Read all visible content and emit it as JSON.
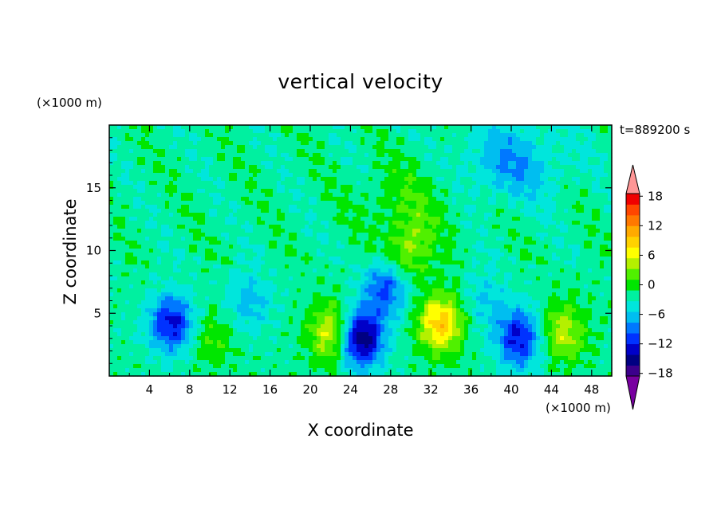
{
  "chart_data": {
    "type": "heatmap",
    "title": "vertical velocity",
    "xlabel": "X coordinate",
    "ylabel": "Z coordinate",
    "x_unit": "(×1000 m)",
    "y_unit": "(×1000 m)",
    "time_label": "t=889200 s",
    "xlim": [
      0,
      50
    ],
    "ylim": [
      0,
      20
    ],
    "x_ticks": [
      4,
      8,
      12,
      16,
      20,
      24,
      28,
      32,
      36,
      40,
      44,
      48
    ],
    "y_ticks": [
      5,
      10,
      15
    ],
    "colorbar": {
      "range": [
        -21,
        21
      ],
      "tick_values": [
        18,
        12,
        6,
        0,
        -6,
        -12,
        -18
      ],
      "tick_labels": [
        "18",
        "12",
        "6",
        "0",
        "−6",
        "−12",
        "−18"
      ],
      "colors": [
        "#7800a0",
        "#3c008c",
        "#000082",
        "#0000c8",
        "#0032ff",
        "#0078ff",
        "#00bef0",
        "#00e6dc",
        "#00f0a0",
        "#00e600",
        "#50f000",
        "#b4f000",
        "#ffff00",
        "#ffd200",
        "#ffaa00",
        "#ff7800",
        "#ff4600",
        "#f00000",
        "#ff9696"
      ],
      "extend": "both"
    },
    "features": [
      {
        "x": 6.2,
        "z": 4.2,
        "value": -12
      },
      {
        "x": 14,
        "z": 6,
        "value": -5
      },
      {
        "x": 10.2,
        "z": 3,
        "value": 4
      },
      {
        "x": 22.2,
        "z": 3.4,
        "value": 10
      },
      {
        "x": 25,
        "z": 3,
        "value": -17
      },
      {
        "x": 27.5,
        "z": 7,
        "value": -9
      },
      {
        "x": 29.8,
        "z": 10,
        "value": 7
      },
      {
        "x": 33,
        "z": 4.2,
        "value": 13
      },
      {
        "x": 40.8,
        "z": 3,
        "value": -12
      },
      {
        "x": 45.2,
        "z": 3.5,
        "value": 8
      },
      {
        "x": 37.5,
        "z": 6,
        "value": -4
      },
      {
        "x": 40,
        "z": 17,
        "value": -6
      },
      {
        "x": 30,
        "z": 14,
        "value": 3
      }
    ]
  }
}
